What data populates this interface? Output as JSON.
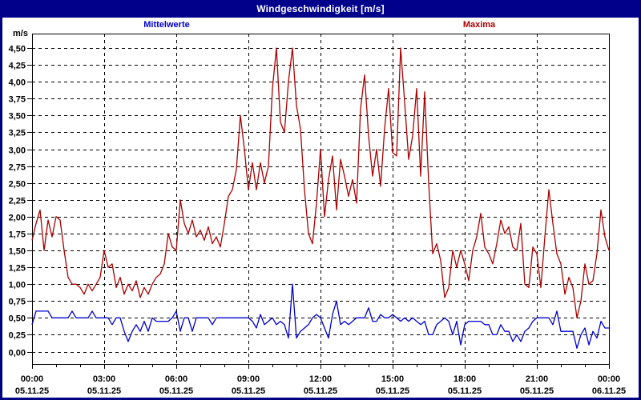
{
  "window": {
    "title": "Windgeschwindigkeit [m/s]"
  },
  "legend": {
    "mean_label": "Mittelwerte",
    "max_label": "Maxima"
  },
  "colors": {
    "titlebar_bg": "#00008B",
    "window_border": "#000080",
    "plot_border": "#000000",
    "grid": "#000000",
    "background": "#FFFFFF",
    "mean_line": "#0000CC",
    "max_line": "#AA0000"
  },
  "chart_data": {
    "type": "line",
    "title": "Windgeschwindigkeit [m/s]",
    "xlabel": "",
    "ylabel": "m/s",
    "ylim": [
      0,
      4.5
    ],
    "ytick_step": 0.25,
    "decimal_comma": true,
    "grid": "dashed",
    "legend_position": "top",
    "sample_minutes": 10,
    "x_span_hours": 24,
    "ytick_labels": [
      "0,00",
      "0,25",
      "0,50",
      "0,75",
      "1,00",
      "1,25",
      "1,50",
      "1,75",
      "2,00",
      "2,25",
      "2,50",
      "2,75",
      "3,00",
      "3,25",
      "3,50",
      "3,75",
      "4,00",
      "4,25",
      "4,50"
    ],
    "xticks": [
      {
        "time": "00:00",
        "date": "05.11.25"
      },
      {
        "time": "03:00",
        "date": "05.11.25"
      },
      {
        "time": "06:00",
        "date": "05.11.25"
      },
      {
        "time": "09:00",
        "date": "05.11.25"
      },
      {
        "time": "12:00",
        "date": "05.11.25"
      },
      {
        "time": "15:00",
        "date": "05.11.25"
      },
      {
        "time": "18:00",
        "date": "05.11.25"
      },
      {
        "time": "21:00",
        "date": "05.11.25"
      },
      {
        "time": "00:00",
        "date": "06.11.25"
      }
    ],
    "series": [
      {
        "name": "Maxima",
        "color": "#AA0000",
        "values": [
          1.65,
          1.9,
          2.1,
          1.5,
          1.95,
          1.7,
          2.0,
          1.95,
          1.5,
          1.1,
          1.0,
          1.0,
          0.95,
          0.85,
          1.0,
          0.9,
          1.0,
          1.1,
          1.5,
          1.25,
          1.3,
          0.95,
          1.1,
          0.85,
          1.0,
          0.9,
          1.05,
          0.8,
          0.95,
          0.85,
          1.0,
          1.1,
          1.15,
          1.3,
          1.75,
          1.55,
          1.5,
          2.25,
          1.9,
          1.75,
          1.95,
          1.7,
          1.8,
          1.65,
          1.85,
          1.6,
          1.7,
          1.55,
          1.9,
          2.3,
          2.4,
          2.7,
          3.5,
          3.0,
          2.4,
          2.8,
          2.4,
          2.8,
          2.5,
          2.75,
          3.9,
          4.5,
          3.4,
          3.25,
          4.0,
          4.5,
          3.65,
          3.3,
          2.4,
          1.75,
          1.6,
          2.2,
          3.0,
          2.0,
          2.55,
          2.9,
          2.1,
          2.85,
          2.6,
          2.3,
          2.55,
          2.2,
          3.6,
          4.1,
          3.2,
          2.6,
          3.0,
          2.45,
          3.3,
          3.9,
          2.95,
          2.9,
          4.5,
          3.7,
          2.85,
          3.2,
          3.9,
          2.6,
          3.85,
          2.5,
          1.45,
          1.6,
          1.35,
          0.8,
          0.95,
          1.5,
          1.25,
          1.5,
          1.3,
          1.05,
          1.5,
          1.7,
          2.05,
          1.55,
          1.45,
          1.3,
          1.6,
          1.95,
          1.75,
          1.85,
          1.55,
          1.5,
          1.9,
          1.0,
          0.95,
          1.55,
          1.45,
          0.95,
          1.7,
          2.4,
          1.9,
          1.45,
          1.3,
          0.85,
          1.1,
          0.95,
          0.5,
          0.75,
          1.3,
          1.0,
          1.05,
          1.45,
          2.1,
          1.7,
          1.5
        ]
      },
      {
        "name": "Mittelwerte",
        "color": "#0000CC",
        "values": [
          0.4,
          0.6,
          0.6,
          0.6,
          0.6,
          0.5,
          0.5,
          0.5,
          0.5,
          0.5,
          0.6,
          0.5,
          0.5,
          0.5,
          0.5,
          0.6,
          0.5,
          0.5,
          0.5,
          0.5,
          0.4,
          0.5,
          0.5,
          0.3,
          0.15,
          0.3,
          0.4,
          0.3,
          0.45,
          0.3,
          0.5,
          0.45,
          0.45,
          0.45,
          0.45,
          0.5,
          0.6,
          0.3,
          0.5,
          0.5,
          0.3,
          0.5,
          0.5,
          0.5,
          0.5,
          0.4,
          0.5,
          0.5,
          0.5,
          0.5,
          0.5,
          0.5,
          0.5,
          0.5,
          0.5,
          0.45,
          0.35,
          0.55,
          0.4,
          0.45,
          0.5,
          0.4,
          0.45,
          0.4,
          0.2,
          1.0,
          0.2,
          0.3,
          0.35,
          0.4,
          0.5,
          0.55,
          0.5,
          0.35,
          0.2,
          0.55,
          0.75,
          0.4,
          0.45,
          0.4,
          0.45,
          0.5,
          0.5,
          0.5,
          0.65,
          0.45,
          0.45,
          0.55,
          0.5,
          0.5,
          0.55,
          0.5,
          0.45,
          0.5,
          0.45,
          0.5,
          0.45,
          0.4,
          0.45,
          0.25,
          0.25,
          0.4,
          0.45,
          0.5,
          0.45,
          0.25,
          0.45,
          0.1,
          0.4,
          0.45,
          0.45,
          0.45,
          0.45,
          0.4,
          0.4,
          0.25,
          0.25,
          0.4,
          0.3,
          0.3,
          0.15,
          0.25,
          0.15,
          0.3,
          0.35,
          0.45,
          0.5,
          0.5,
          0.5,
          0.5,
          0.4,
          0.6,
          0.3,
          0.3,
          0.3,
          0.3,
          0.05,
          0.25,
          0.35,
          0.1,
          0.3,
          0.2,
          0.45,
          0.35,
          0.35
        ]
      }
    ]
  }
}
